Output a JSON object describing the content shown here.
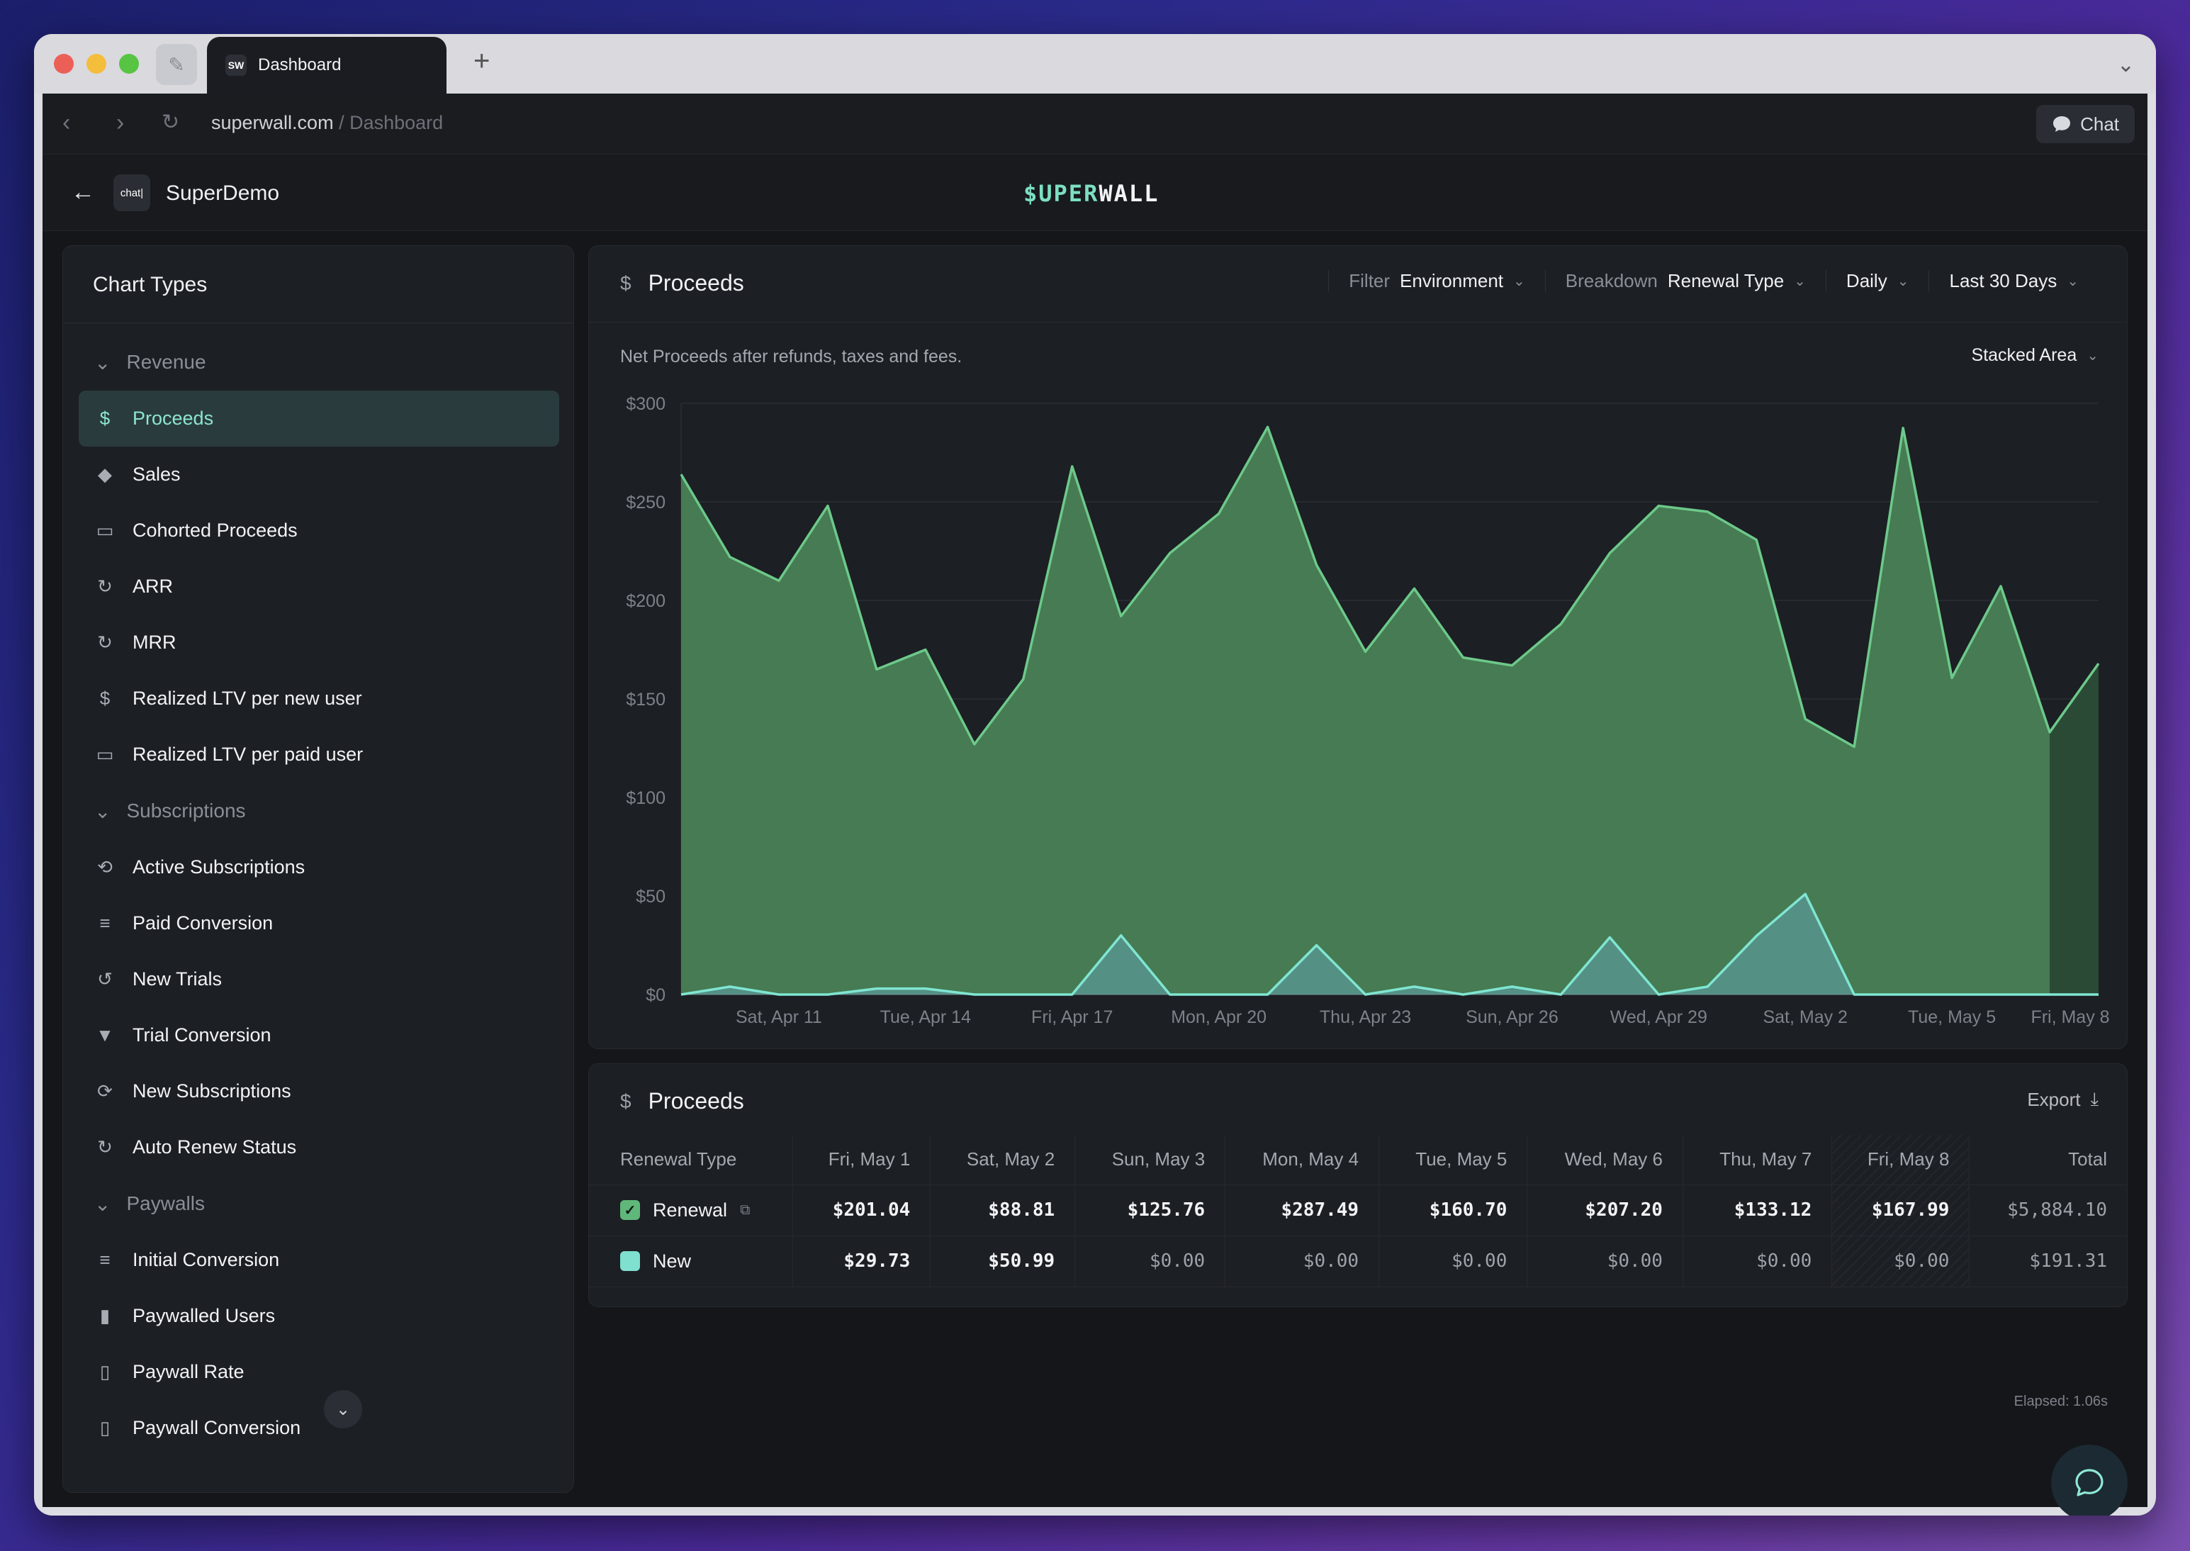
{
  "browser": {
    "tab_title": "Dashboard",
    "tab_icon_text": "SW",
    "url_host": "superwall.com",
    "url_path": " / Dashboard",
    "chat_label": "Chat"
  },
  "header": {
    "app_logo_text": "chat|",
    "app_name": "SuperDemo",
    "brand_prefix": "$UPER",
    "brand_suffix": "WALL"
  },
  "sidebar": {
    "title": "Chart Types",
    "sections": [
      {
        "label": "Revenue",
        "items": [
          {
            "label": "Proceeds",
            "icon": "dollar-icon",
            "glyph": "$",
            "active": true
          },
          {
            "label": "Sales",
            "icon": "tag-icon",
            "glyph": "◆"
          },
          {
            "label": "Cohorted Proceeds",
            "icon": "calendar-icon",
            "glyph": "▭"
          },
          {
            "label": "ARR",
            "icon": "recurring-dollar-icon",
            "glyph": "↻"
          },
          {
            "label": "MRR",
            "icon": "recurring-dollar-icon",
            "glyph": "↻"
          },
          {
            "label": "Realized LTV per new user",
            "icon": "dollar-icon",
            "glyph": "$"
          },
          {
            "label": "Realized LTV per paid user",
            "icon": "calendar-icon",
            "glyph": "▭"
          }
        ]
      },
      {
        "label": "Subscriptions",
        "items": [
          {
            "label": "Active Subscriptions",
            "icon": "loop-icon",
            "glyph": "⟲"
          },
          {
            "label": "Paid Conversion",
            "icon": "filter-lines-icon",
            "glyph": "≡"
          },
          {
            "label": "New Trials",
            "icon": "history-icon",
            "glyph": "↺"
          },
          {
            "label": "Trial Conversion",
            "icon": "funnel-icon",
            "glyph": "▼"
          },
          {
            "label": "New Subscriptions",
            "icon": "refresh-icon",
            "glyph": "⟳"
          },
          {
            "label": "Auto Renew Status",
            "icon": "renew-icon",
            "glyph": "↻"
          }
        ]
      },
      {
        "label": "Paywalls",
        "items": [
          {
            "label": "Initial Conversion",
            "icon": "filter-lines-icon",
            "glyph": "≡"
          },
          {
            "label": "Paywalled Users",
            "icon": "phone-user-icon",
            "glyph": "▮"
          },
          {
            "label": "Paywall Rate",
            "icon": "phone-icon",
            "glyph": "▯"
          },
          {
            "label": "Paywall Conversion",
            "icon": "phone-icon",
            "glyph": "▯"
          }
        ]
      }
    ]
  },
  "chart_panel": {
    "title": "Proceeds",
    "filter_label": "Filter",
    "filter_value": "Environment",
    "breakdown_label": "Breakdown",
    "breakdown_value": "Renewal Type",
    "interval": "Daily",
    "range": "Last 30 Days",
    "subtitle": "Net Proceeds after refunds, taxes and fees.",
    "chart_type_label": "Stacked Area"
  },
  "chart_data": {
    "type": "area",
    "stacked": true,
    "ylim": [
      0,
      300
    ],
    "yticks": [
      "$0",
      "$50",
      "$100",
      "$150",
      "$200",
      "$250",
      "$300"
    ],
    "xtick_labels": [
      "Sat, Apr 11",
      "Tue, Apr 14",
      "Fri, Apr 17",
      "Mon, Apr 20",
      "Thu, Apr 23",
      "Sun, Apr 26",
      "Wed, Apr 29",
      "Sat, May 2",
      "Tue, May 5",
      "Fri, May 8"
    ],
    "x": [
      "Apr 9",
      "Apr 10",
      "Apr 11",
      "Apr 12",
      "Apr 13",
      "Apr 14",
      "Apr 15",
      "Apr 16",
      "Apr 17",
      "Apr 18",
      "Apr 19",
      "Apr 20",
      "Apr 21",
      "Apr 22",
      "Apr 23",
      "Apr 24",
      "Apr 25",
      "Apr 26",
      "Apr 27",
      "Apr 28",
      "Apr 29",
      "Apr 30",
      "May 1",
      "May 2",
      "May 3",
      "May 4",
      "May 5",
      "May 6",
      "May 7",
      "May 8"
    ],
    "grid": true,
    "series": [
      {
        "name": "New",
        "color": "#5fc9b0",
        "values": [
          0,
          4,
          0,
          0,
          3,
          3,
          0,
          0,
          0,
          30,
          0,
          0,
          0,
          25,
          0,
          4,
          0,
          4,
          0,
          29,
          0,
          4,
          29.73,
          50.99,
          0,
          0,
          0,
          0,
          0,
          0
        ]
      },
      {
        "name": "Renewal",
        "color": "#4e8f5c",
        "values": [
          264,
          218,
          210,
          248,
          162,
          172,
          127,
          160,
          268,
          162,
          224,
          244,
          288,
          193,
          174,
          202,
          171,
          163,
          188,
          195,
          248,
          241,
          201.04,
          88.81,
          125.76,
          287.49,
          160.7,
          207.2,
          133.12,
          167.99
        ]
      }
    ]
  },
  "table_panel": {
    "title": "Proceeds",
    "export_label": "Export",
    "columns": [
      "Renewal Type",
      "Fri, May 1",
      "Sat, May 2",
      "Sun, May 3",
      "Mon, May 4",
      "Tue, May 5",
      "Wed, May 6",
      "Thu, May 7",
      "Fri, May 8",
      "Total"
    ],
    "rows": [
      {
        "name": "Renewal",
        "color": "#5fb87a",
        "values": [
          "$201.04",
          "$88.81",
          "$125.76",
          "$287.49",
          "$160.70",
          "$207.20",
          "$133.12",
          "$167.99",
          "$5,884.10"
        ]
      },
      {
        "name": "New",
        "color": "#7fe0cf",
        "values": [
          "$29.73",
          "$50.99",
          "$0.00",
          "$0.00",
          "$0.00",
          "$0.00",
          "$0.00",
          "$0.00",
          "$191.31"
        ]
      }
    ]
  },
  "footer": {
    "elapsed": "Elapsed: 1.06s"
  }
}
